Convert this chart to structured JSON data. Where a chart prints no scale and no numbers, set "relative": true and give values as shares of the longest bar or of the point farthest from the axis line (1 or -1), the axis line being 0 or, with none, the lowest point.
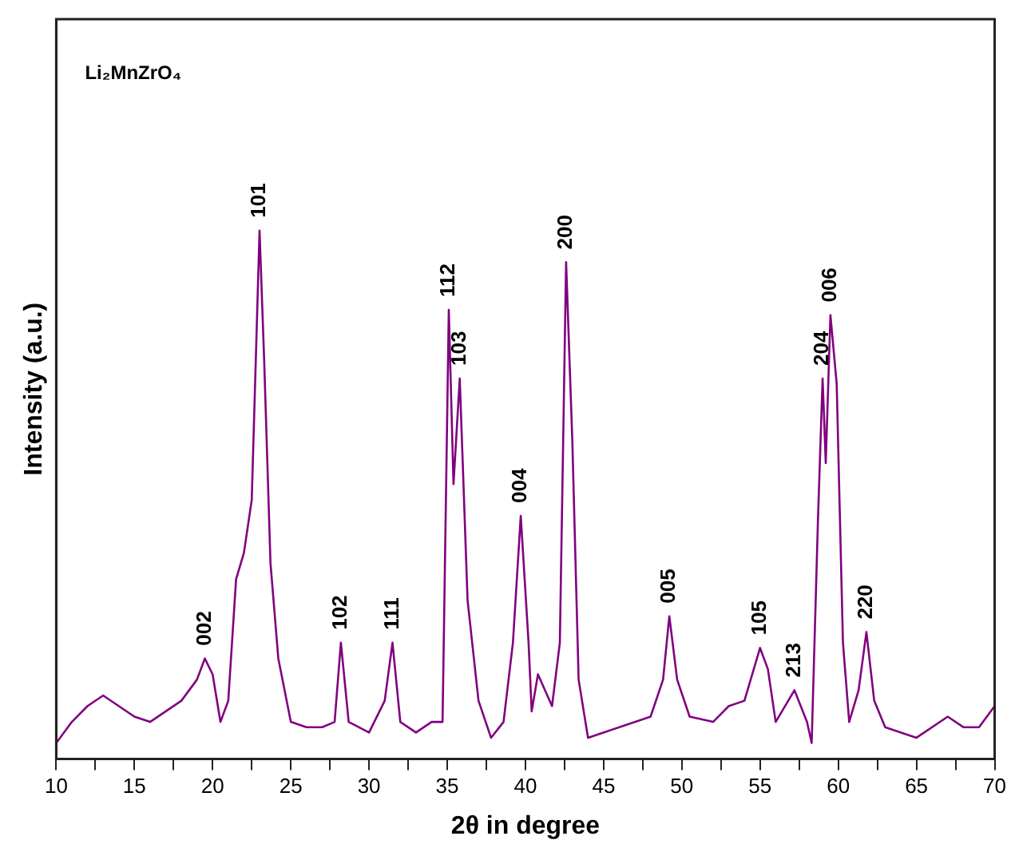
{
  "chart_data": {
    "type": "line",
    "relative": true,
    "xlabel": "2θ in degree",
    "ylabel": "Intensity (a.u.)",
    "xlim": [
      10,
      70
    ],
    "xticks": [
      10,
      {
        "value": 12.5,
        "label": null
      },
      15,
      {
        "value": 17.5,
        "label": null
      },
      20,
      {
        "value": 22.5,
        "label": null
      },
      25,
      {
        "value": 27.5,
        "label": null
      },
      30,
      {
        "value": 32.5,
        "label": null
      },
      35,
      {
        "value": 37.5,
        "label": null
      },
      40,
      {
        "value": 42.5,
        "label": null
      },
      45,
      {
        "value": 47.5,
        "label": null
      },
      50,
      {
        "value": 52.5,
        "label": null
      },
      55,
      {
        "value": 57.5,
        "label": null
      },
      60,
      {
        "value": 62.5,
        "label": null
      },
      65,
      {
        "value": 67.5,
        "label": null
      },
      70
    ],
    "x": [
      10,
      11,
      12,
      13,
      14,
      15,
      16,
      17,
      18,
      19,
      19.5,
      20,
      20.5,
      21,
      21.5,
      22,
      22.5,
      23,
      23.3,
      23.7,
      24.2,
      25,
      26,
      27,
      27.8,
      28.2,
      28.7,
      30,
      31,
      31.5,
      32,
      33,
      34,
      34.7,
      35.1,
      35.4,
      35.8,
      36.3,
      37,
      37.8,
      38.6,
      39.2,
      39.7,
      40.2,
      40.4,
      40.8,
      41.7,
      42.2,
      42.6,
      43,
      43.4,
      44,
      46,
      48,
      48.8,
      49.2,
      49.7,
      50.5,
      52,
      53,
      54,
      55,
      55.5,
      56,
      57.2,
      58,
      58.3,
      58.7,
      59,
      59.2,
      59.5,
      59.9,
      60.3,
      60.7,
      61.3,
      61.8,
      62.3,
      63,
      65,
      67,
      68,
      69,
      70
    ],
    "series": [
      {
        "color": "#800080",
        "values": [
          0.03,
          0.07,
          0.1,
          0.12,
          0.1,
          0.08,
          0.07,
          0.09,
          0.11,
          0.15,
          0.19,
          0.16,
          0.07,
          0.11,
          0.34,
          0.39,
          0.49,
          1,
          0.75,
          0.37,
          0.19,
          0.07,
          0.06,
          0.06,
          0.07,
          0.22,
          0.07,
          0.05,
          0.11,
          0.22,
          0.07,
          0.05,
          0.07,
          0.07,
          0.85,
          0.52,
          0.72,
          0.3,
          0.11,
          0.04,
          0.07,
          0.22,
          0.46,
          0.22,
          0.09,
          0.16,
          0.1,
          0.22,
          0.94,
          0.6,
          0.15,
          0.04,
          0.06,
          0.08,
          0.15,
          0.27,
          0.15,
          0.08,
          0.07,
          0.1,
          0.11,
          0.21,
          0.17,
          0.07,
          0.13,
          0.07,
          0.03,
          0.45,
          0.72,
          0.56,
          0.84,
          0.71,
          0.22,
          0.07,
          0.13,
          0.24,
          0.11,
          0.06,
          0.04,
          0.08,
          0.06,
          0.06,
          0.1
        ]
      }
    ],
    "annotations": [
      "Li₂MnZrO₄",
      {
        "text": "002",
        "x": 19.5,
        "y": 0.19
      },
      {
        "text": "101",
        "x": 23,
        "y": 1
      },
      {
        "text": "102",
        "x": 28.2,
        "y": 0.22
      },
      {
        "text": "111",
        "x": 31.5,
        "y": 0.22
      },
      {
        "text": "112",
        "x": 35.1,
        "y": 0.85
      },
      {
        "text": "103",
        "x": 35.8,
        "y": 0.72
      },
      {
        "text": "004",
        "x": 39.7,
        "y": 0.46
      },
      {
        "text": "200",
        "x": 42.6,
        "y": 0.94
      },
      {
        "text": "005",
        "x": 49.2,
        "y": 0.27
      },
      {
        "text": "105",
        "x": 55,
        "y": 0.21
      },
      {
        "text": "213",
        "x": 57.2,
        "y": 0.13
      },
      {
        "text": "204",
        "x": 59,
        "y": 0.72
      },
      {
        "text": "006",
        "x": 59.5,
        "y": 0.84
      },
      {
        "text": "220",
        "x": 61.8,
        "y": 0.24
      }
    ],
    "grid": false,
    "legend": false,
    "marker": "none",
    "line_style": "solid"
  }
}
